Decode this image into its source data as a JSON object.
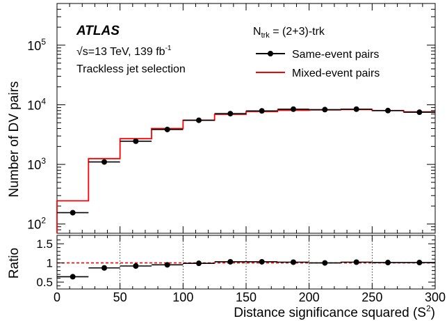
{
  "chart_data": [
    {
      "type": "step",
      "panel": "main",
      "y_scale": "log",
      "xlim": [
        0,
        300
      ],
      "ylim": [
        70,
        500000
      ],
      "xlabel": "",
      "ylabel": "Number of DV pairs",
      "bin_width": 25,
      "y_ticks": [
        {
          "value": 100,
          "base": "10",
          "exp": "2"
        },
        {
          "value": 1000,
          "base": "10",
          "exp": "3"
        },
        {
          "value": 10000,
          "base": "10",
          "exp": "4"
        },
        {
          "value": 100000,
          "base": "10",
          "exp": "5"
        }
      ],
      "annotations": {
        "experiment": "ATLAS",
        "energy_prefix": "√s=13 TeV, 139 fb",
        "energy_sup": "-1",
        "selection": "Trackless jet selection",
        "ntrk_base": "N",
        "ntrk_sub": "trk",
        "ntrk_value": " = (2+3)-trk"
      },
      "legend_position": "top-right",
      "series": [
        {
          "name": "Same-event pairs",
          "style": "points-with-xerr",
          "color": "#000000",
          "x": [
            12.5,
            37.5,
            62.5,
            87.5,
            112.5,
            137.5,
            162.5,
            187.5,
            212.5,
            237.5,
            262.5,
            287.5
          ],
          "values": [
            155,
            1100,
            2450,
            3850,
            5500,
            7100,
            7900,
            8450,
            8300,
            8450,
            8000,
            7500
          ]
        },
        {
          "name": "Mixed-event pairs",
          "style": "histogram",
          "color": "#ff0000",
          "x_edges": [
            0,
            25,
            50,
            75,
            100,
            125,
            150,
            175,
            200,
            225,
            250,
            275,
            300
          ],
          "values": [
            245,
            1250,
            2700,
            4000,
            5500,
            6900,
            7700,
            8100,
            8200,
            8300,
            8000,
            7600
          ]
        }
      ]
    },
    {
      "type": "scatter",
      "panel": "ratio",
      "xlim": [
        0,
        300
      ],
      "ylim": [
        0.32,
        1.72
      ],
      "xlabel": "Distance significance squared (S²)",
      "xlabel_base": "Distance significance squared (S",
      "xlabel_sup": "2",
      "xlabel_tail": ")",
      "ylabel": "Ratio",
      "x_tick_labels": [
        "0",
        "50",
        "100",
        "150",
        "200",
        "250",
        "300"
      ],
      "x_tick_values": [
        0,
        50,
        100,
        150,
        200,
        250,
        300
      ],
      "y_tick_labels": [
        "0.5",
        "1",
        "1.5"
      ],
      "y_tick_values": [
        0.5,
        1,
        1.5
      ],
      "reference_line": {
        "value": 1,
        "style": "dashed",
        "color": "#ff0000"
      },
      "grid": "vertical dotted at 50,100,150,200,250",
      "series": [
        {
          "name": "Ratio",
          "style": "points-with-xerr",
          "color": "#000000",
          "x": [
            12.5,
            37.5,
            62.5,
            87.5,
            112.5,
            137.5,
            162.5,
            187.5,
            212.5,
            237.5,
            262.5,
            287.5
          ],
          "values": [
            0.64,
            0.87,
            0.92,
            0.95,
            0.99,
            1.03,
            1.03,
            1.02,
            1.0,
            1.02,
            1.01,
            1.01
          ]
        }
      ]
    }
  ]
}
